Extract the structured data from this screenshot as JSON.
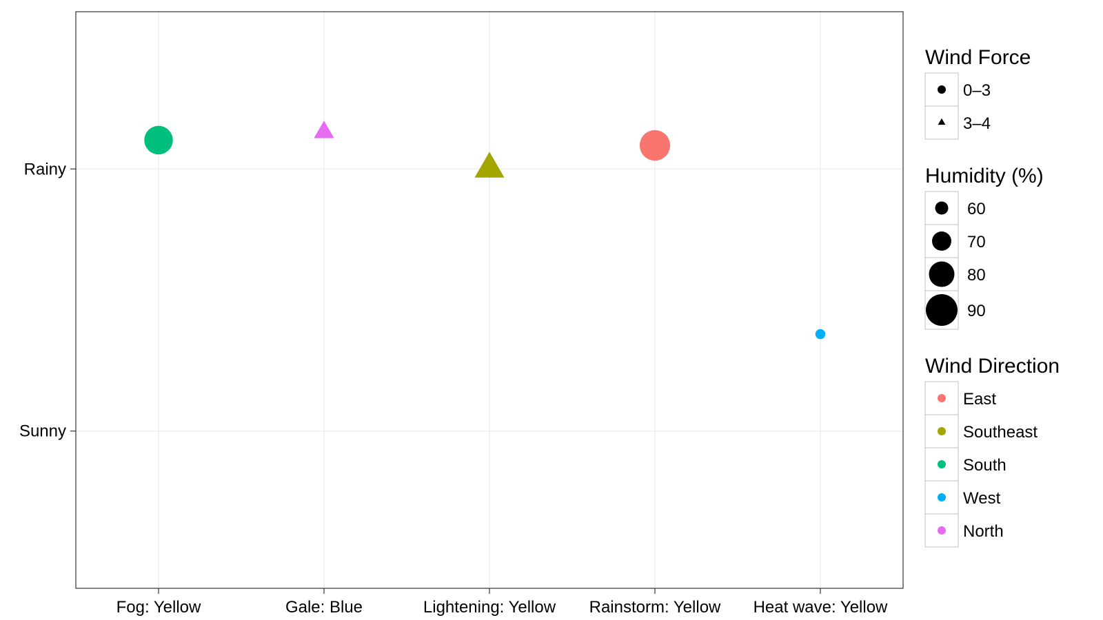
{
  "chart_data": {
    "type": "scatter",
    "title": "",
    "xlabel": "",
    "ylabel": "",
    "x_categories": [
      "Fog: Yellow",
      "Gale: Blue",
      "Lightening: Yellow",
      "Rainstorm: Yellow",
      "Heat wave: Yellow"
    ],
    "y_categories": [
      "Sunny",
      "Rainy"
    ],
    "ylim": [
      0.4,
      2.6
    ],
    "grid": true,
    "points": [
      {
        "x": "Fog: Yellow",
        "y": 2.11,
        "wind_force": "0–3",
        "humidity": 85,
        "wind_direction": "South"
      },
      {
        "x": "Gale: Blue",
        "y": 2.14,
        "wind_force": "3–4",
        "humidity": 75,
        "wind_direction": "North"
      },
      {
        "x": "Lightening: Yellow",
        "y": 2.0,
        "wind_force": "3–4",
        "humidity": 92,
        "wind_direction": "Southeast"
      },
      {
        "x": "Rainstorm: Yellow",
        "y": 2.09,
        "wind_force": "0–3",
        "humidity": 88,
        "wind_direction": "East"
      },
      {
        "x": "Heat wave: Yellow",
        "y": 1.37,
        "wind_force": "0–3",
        "humidity": 55,
        "wind_direction": "West"
      }
    ],
    "legends": [
      {
        "title": "Wind Force",
        "type": "shape",
        "entries": [
          {
            "label": "0–3",
            "shape": "circle"
          },
          {
            "label": "3–4",
            "shape": "triangle"
          }
        ]
      },
      {
        "title": "Humidity (%)",
        "type": "size",
        "entries": [
          {
            "label": "60",
            "value": 60
          },
          {
            "label": "70",
            "value": 70
          },
          {
            "label": "80",
            "value": 80
          },
          {
            "label": "90",
            "value": 90
          }
        ]
      },
      {
        "title": "Wind Direction",
        "type": "color",
        "entries": [
          {
            "label": "East",
            "color": "#F8766D"
          },
          {
            "label": "Southeast",
            "color": "#A3A500"
          },
          {
            "label": "South",
            "color": "#00BF7D"
          },
          {
            "label": "West",
            "color": "#00B0F6"
          },
          {
            "label": "North",
            "color": "#E76BF3"
          }
        ]
      }
    ],
    "legend_position": "right"
  }
}
